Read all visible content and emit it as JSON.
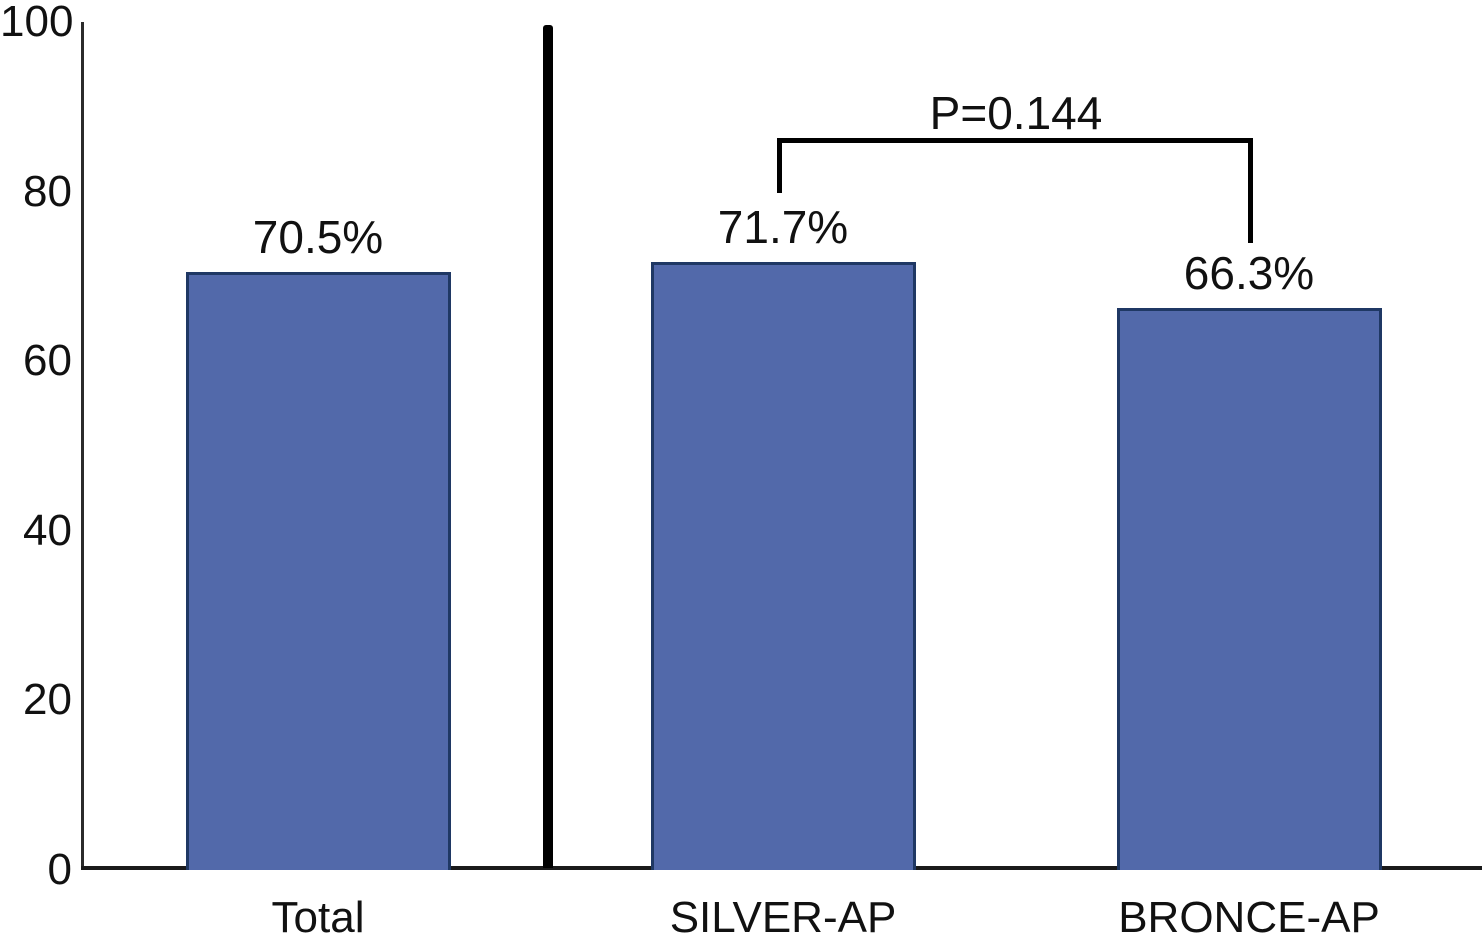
{
  "chart_data": {
    "type": "bar",
    "title": "",
    "xlabel": "",
    "ylabel": "",
    "categories": [
      "Total",
      "SILVER-AP",
      "BRONCE-AP"
    ],
    "values": [
      70.5,
      71.7,
      66.3
    ],
    "value_labels": [
      "70.5%",
      "71.7%",
      "66.3%"
    ],
    "ylim": [
      0,
      100
    ],
    "yticks": [
      0,
      20,
      40,
      60,
      80,
      100
    ],
    "grid": false,
    "legend": "none",
    "annotations": [
      {
        "type": "significance-bracket",
        "text": "P=0.144",
        "groups": [
          "SILVER-AP",
          "BRONCE-AP"
        ]
      },
      {
        "type": "separator-line",
        "after_category": "Total"
      }
    ],
    "colors": {
      "bar_fill": "#5269aa",
      "bar_border": "#1f3864",
      "axis": "#1a1a1a",
      "separator": "#000000",
      "text": "#111111",
      "background": "#ffffff"
    }
  }
}
